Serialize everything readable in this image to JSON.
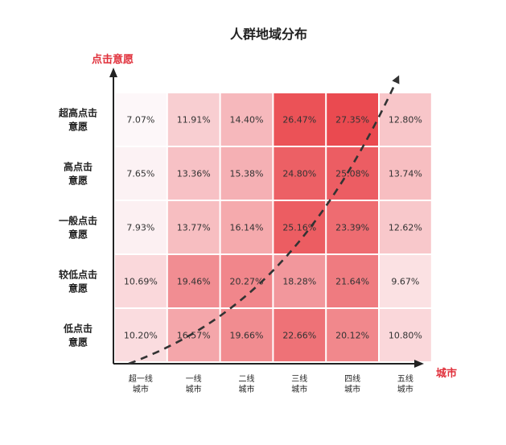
{
  "chart_data": {
    "type": "heatmap",
    "title": "人群地域分布",
    "ylabel": "点击意愿",
    "xlabel": "城市",
    "x_categories": [
      [
        "超一线",
        "城市"
      ],
      [
        "一线",
        "城市"
      ],
      [
        "二线",
        "城市"
      ],
      [
        "三线",
        "城市"
      ],
      [
        "四线",
        "城市"
      ],
      [
        "五线",
        "城市"
      ]
    ],
    "y_categories": [
      [
        "超高点击",
        "意愿"
      ],
      [
        "高点击",
        "意愿"
      ],
      [
        "一般点击",
        "意愿"
      ],
      [
        "较低点击",
        "意愿"
      ],
      [
        "低点击",
        "意愿"
      ]
    ],
    "values": [
      [
        7.07,
        11.91,
        14.4,
        26.47,
        27.35,
        12.8
      ],
      [
        7.65,
        13.36,
        15.38,
        24.8,
        25.08,
        13.74
      ],
      [
        7.93,
        13.77,
        16.14,
        25.16,
        23.39,
        12.62
      ],
      [
        10.69,
        19.46,
        20.27,
        18.28,
        21.64,
        9.67
      ],
      [
        10.2,
        16.57,
        19.66,
        22.66,
        20.12,
        10.8
      ]
    ],
    "value_suffix": "%",
    "value_range": [
      7.07,
      27.35
    ],
    "trend_arrow": "dashed curve rising from bottom-left to top-right"
  },
  "colors": {
    "axis_label": "#e0303b",
    "title": "#222222",
    "heat_low": "#fdf7f9",
    "heat_high": "#ea4a50",
    "cell_text": "#333333",
    "axis": "#222222",
    "trend": "#333333"
  }
}
